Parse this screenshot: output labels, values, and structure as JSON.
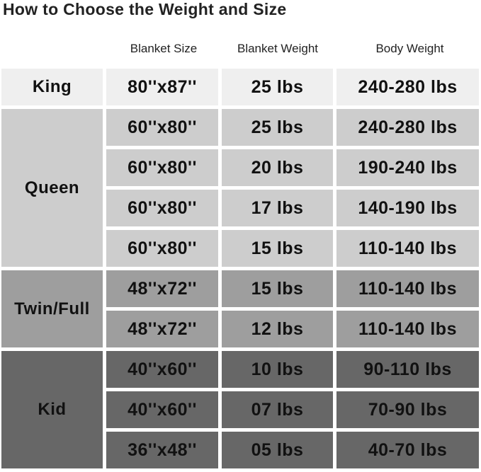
{
  "title": "How to Choose the Weight and Size",
  "headers": [
    "Blanket Size",
    "Blanket Weight",
    "Body Weight"
  ],
  "colors": {
    "King": "#efefef",
    "Queen": "#cdcdcd",
    "Twin/Full": "#9e9e9e",
    "Kid": "#676767"
  },
  "categories": [
    {
      "name": "King",
      "rows": [
        [
          "80''x87''",
          "25 lbs",
          "240-280 lbs"
        ]
      ]
    },
    {
      "name": "Queen",
      "rows": [
        [
          "60''x80''",
          "25 lbs",
          "240-280 lbs"
        ],
        [
          "60''x80''",
          "20 lbs",
          "190-240 lbs"
        ],
        [
          "60''x80''",
          "17 lbs",
          "140-190 lbs"
        ],
        [
          "60''x80''",
          "15 lbs",
          "110-140 lbs"
        ]
      ]
    },
    {
      "name": "Twin/Full",
      "rows": [
        [
          "48''x72''",
          "15 lbs",
          "110-140 lbs"
        ],
        [
          "48''x72''",
          "12 lbs",
          "110-140 lbs"
        ]
      ]
    },
    {
      "name": "Kid",
      "rows": [
        [
          "40''x60''",
          "10 lbs",
          "90-110 lbs"
        ],
        [
          "40''x60''",
          "07 lbs",
          "70-90 lbs"
        ],
        [
          "36''x48''",
          "05 lbs",
          "40-70 lbs"
        ]
      ]
    }
  ]
}
